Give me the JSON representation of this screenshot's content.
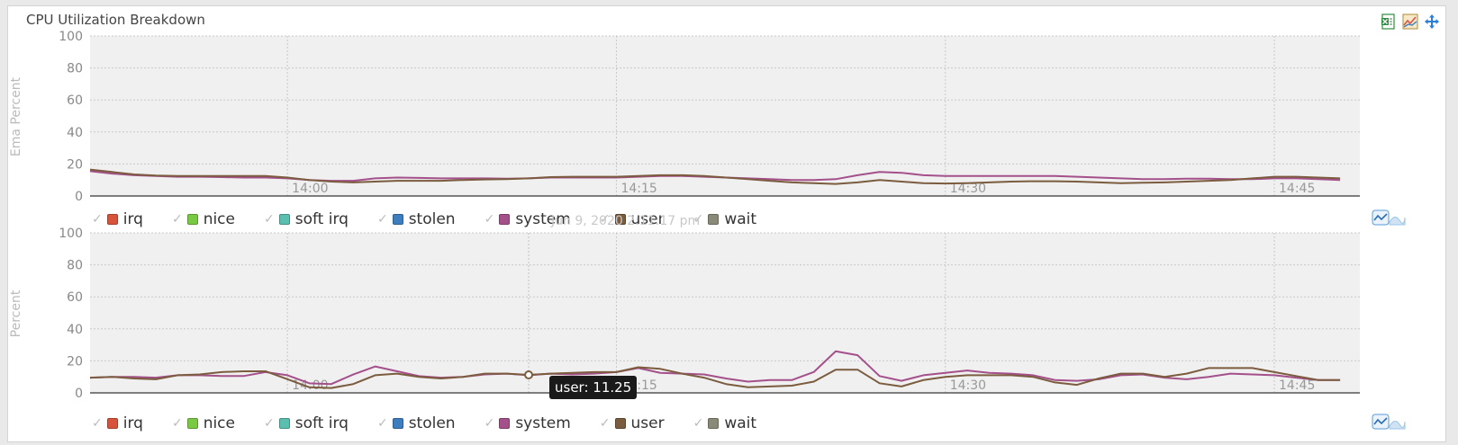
{
  "panel": {
    "title": "CPU Utilization Breakdown",
    "toolbar": [
      {
        "name": "export-excel-icon",
        "color": "#2e8b3d"
      },
      {
        "name": "line-chart-icon",
        "color": "#d9534f"
      },
      {
        "name": "move-icon",
        "color": "#2a7fd4"
      }
    ]
  },
  "legend": [
    {
      "label": "irq",
      "color": "#d9533b"
    },
    {
      "label": "nice",
      "color": "#7ac943"
    },
    {
      "label": "soft irq",
      "color": "#5bbfb0"
    },
    {
      "label": "stolen",
      "color": "#3d7ebf"
    },
    {
      "label": "system",
      "color": "#a4508b"
    },
    {
      "label": "user",
      "color": "#7b5c3e"
    },
    {
      "label": "wait",
      "color": "#8a8a78"
    }
  ],
  "ghost_date": "Jun 9, 2020 2:11:17 pm",
  "tooltip": "user: 11.25",
  "chart_data": [
    {
      "type": "line",
      "ylabel": "Ema Percent",
      "ylim": [
        0,
        100
      ],
      "yticks": [
        "0",
        "20",
        "40",
        "60",
        "80",
        "100"
      ],
      "xlim": [
        "13:51",
        "14:48"
      ],
      "xticks": [
        {
          "label": "14:00",
          "t": "14:00"
        },
        {
          "label": "14:15",
          "t": "14:15"
        },
        {
          "label": "14:30",
          "t": "14:30"
        },
        {
          "label": "14:45",
          "t": "14:45"
        }
      ],
      "x": [
        "13:51",
        "13:52",
        "13:53",
        "13:54",
        "13:55",
        "13:56",
        "13:57",
        "13:58",
        "13:59",
        "14:00",
        "14:01",
        "14:02",
        "14:03",
        "14:04",
        "14:05",
        "14:06",
        "14:07",
        "14:08",
        "14:09",
        "14:10",
        "14:11",
        "14:12",
        "14:13",
        "14:14",
        "14:15",
        "14:16",
        "14:17",
        "14:18",
        "14:19",
        "14:20",
        "14:21",
        "14:22",
        "14:23",
        "14:24",
        "14:25",
        "14:26",
        "14:27",
        "14:28",
        "14:29",
        "14:30",
        "14:31",
        "14:32",
        "14:33",
        "14:34",
        "14:35",
        "14:36",
        "14:37",
        "14:38",
        "14:39",
        "14:40",
        "14:41",
        "14:42",
        "14:43",
        "14:44",
        "14:45",
        "14:46",
        "14:47",
        "14:48"
      ],
      "series": [
        {
          "name": "system",
          "color": "#a4508b",
          "values": [
            15.5,
            14,
            13,
            12.5,
            12,
            12,
            11.8,
            11.5,
            11.5,
            11,
            10,
            9.5,
            9.5,
            11,
            11.5,
            11.3,
            11,
            11,
            11,
            10.8,
            11,
            11.5,
            11.5,
            11.5,
            11.5,
            12,
            12.5,
            12.5,
            12,
            11.5,
            11,
            10.5,
            10,
            10,
            10.5,
            13,
            15,
            14.5,
            13,
            12.5,
            12.5,
            12.5,
            12.5,
            12.5,
            12.5,
            12,
            11.5,
            11,
            10.5,
            10.5,
            10.8,
            10.8,
            10.5,
            10.5,
            11,
            11,
            10.5,
            10
          ]
        },
        {
          "name": "user",
          "color": "#7b5c3e",
          "values": [
            16.5,
            15,
            13.5,
            12.8,
            12.5,
            12.5,
            12.5,
            12.5,
            12.5,
            11.5,
            10,
            9,
            8.5,
            9,
            9.5,
            9.5,
            9.5,
            10,
            10.3,
            10.5,
            11,
            11.8,
            12,
            12,
            12,
            12.5,
            13,
            13,
            12.5,
            11.5,
            10.5,
            9.5,
            8.5,
            8,
            7.5,
            8.5,
            10,
            9,
            8,
            7.8,
            8,
            8.5,
            9,
            9.2,
            9.2,
            9,
            8.5,
            8,
            8.3,
            8.5,
            9,
            9.5,
            10,
            11,
            12,
            12,
            11.5,
            11
          ]
        }
      ]
    },
    {
      "type": "line",
      "ylabel": "Percent",
      "ylim": [
        0,
        100
      ],
      "yticks": [
        "0",
        "20",
        "40",
        "60",
        "80",
        "100"
      ],
      "xlim": [
        "13:51",
        "14:48"
      ],
      "xticks": [
        {
          "label": "14:00",
          "t": "14:00"
        },
        {
          "label": "14:15",
          "t": "14:15"
        },
        {
          "label": "14:30",
          "t": "14:30"
        },
        {
          "label": "14:45",
          "t": "14:45"
        }
      ],
      "x": [
        "13:51",
        "13:52",
        "13:53",
        "13:54",
        "13:55",
        "13:56",
        "13:57",
        "13:58",
        "13:59",
        "14:00",
        "14:01",
        "14:02",
        "14:03",
        "14:04",
        "14:05",
        "14:06",
        "14:07",
        "14:08",
        "14:09",
        "14:10",
        "14:11",
        "14:12",
        "14:13",
        "14:14",
        "14:15",
        "14:16",
        "14:17",
        "14:18",
        "14:19",
        "14:20",
        "14:21",
        "14:22",
        "14:23",
        "14:24",
        "14:25",
        "14:26",
        "14:27",
        "14:28",
        "14:29",
        "14:30",
        "14:31",
        "14:32",
        "14:33",
        "14:34",
        "14:35",
        "14:36",
        "14:37",
        "14:38",
        "14:39",
        "14:40",
        "14:41",
        "14:42",
        "14:43",
        "14:44",
        "14:45",
        "14:46",
        "14:47",
        "14:48"
      ],
      "series": [
        {
          "name": "system",
          "color": "#a4508b",
          "values": [
            9.5,
            10,
            10,
            9.5,
            11,
            11,
            10.5,
            10.5,
            13,
            11,
            6,
            5.5,
            11.5,
            16.5,
            13.5,
            10.5,
            9.5,
            10,
            11.5,
            12,
            11,
            12,
            11.5,
            12,
            13,
            15.5,
            12.5,
            12,
            11.5,
            9,
            7,
            8,
            8,
            13,
            26,
            23.5,
            10.5,
            7.5,
            11,
            12.5,
            14,
            12.5,
            12,
            11,
            8,
            7.5,
            8.5,
            11,
            11.5,
            9.5,
            8.5,
            10,
            12,
            11.5,
            11,
            9.5,
            8,
            8
          ]
        },
        {
          "name": "user",
          "color": "#7b5c3e",
          "values": [
            9.5,
            10,
            9,
            8.5,
            11,
            11.5,
            13,
            13.5,
            13.5,
            8.5,
            3.5,
            3,
            5.5,
            11,
            12,
            10,
            9,
            10,
            12,
            12,
            11.25,
            12,
            12.5,
            13,
            13,
            16,
            15,
            12,
            9.5,
            5.5,
            3.5,
            4,
            4.5,
            7,
            14.5,
            14.5,
            6,
            4,
            8,
            10,
            11,
            11,
            11,
            10,
            6.5,
            5,
            9,
            12,
            12,
            10,
            12,
            15.5,
            15.5,
            15.5,
            13,
            10.5,
            8,
            8
          ]
        }
      ],
      "highlight": {
        "series": "user",
        "x": "14:11",
        "y": 11.25
      }
    }
  ]
}
